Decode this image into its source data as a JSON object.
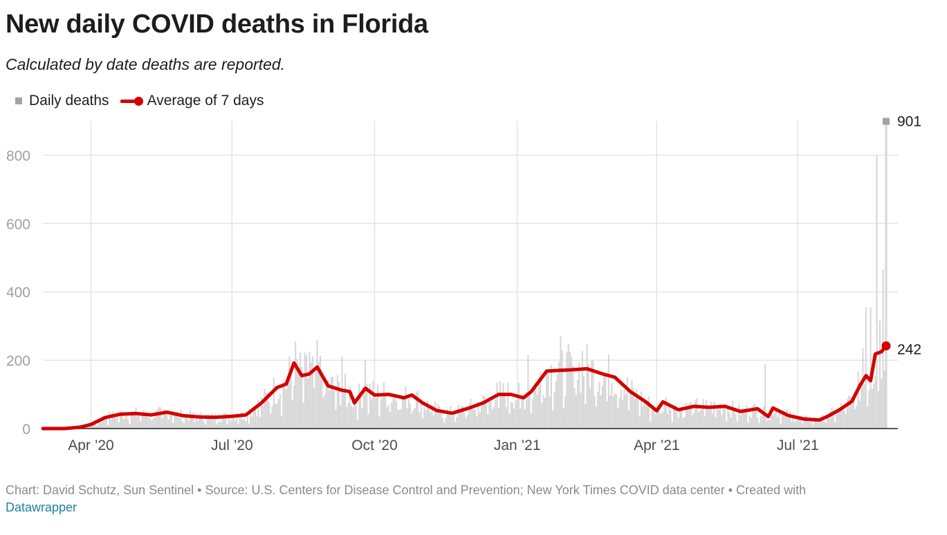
{
  "header": {
    "title": "New daily COVID deaths in Florida",
    "subtitle": "Calculated by date deaths are reported."
  },
  "legend": {
    "bars_label": "Daily deaths",
    "line_label": "Average of 7 days"
  },
  "footer": {
    "text": "Chart: David Schutz, Sun Sentinel • Source: U.S. Centers for Disease Control and Prevention; New York Times COVID data center • Created with",
    "link": "Datawrapper"
  },
  "colors": {
    "bars": "#d6d6d6",
    "bar_last": "#a3a3a3",
    "line": "#d40000",
    "grid": "#e4e4e4",
    "axis_text": "#a0a0a0"
  },
  "chart_data": {
    "type": "bar",
    "x_range": [
      "2020-03-01",
      "2021-08-27"
    ],
    "ylim": [
      0,
      900
    ],
    "y_ticks": [
      0,
      200,
      400,
      600,
      800
    ],
    "x_ticks": [
      {
        "date": "2020-04-01",
        "label": "Apr ’20"
      },
      {
        "date": "2020-07-01",
        "label": "Jul ’20"
      },
      {
        "date": "2020-10-01",
        "label": "Oct ’20"
      },
      {
        "date": "2021-01-01",
        "label": "Jan ’21"
      },
      {
        "date": "2021-04-01",
        "label": "Apr ’21"
      },
      {
        "date": "2021-07-01",
        "label": "Jul ’21"
      }
    ],
    "gridlines": true,
    "legend_position": "top-left",
    "series": [
      {
        "name": "Average of 7 days",
        "type": "line",
        "points": [
          [
            "2020-03-01",
            0
          ],
          [
            "2020-03-15",
            0
          ],
          [
            "2020-03-25",
            4
          ],
          [
            "2020-04-01",
            12
          ],
          [
            "2020-04-10",
            32
          ],
          [
            "2020-04-20",
            42
          ],
          [
            "2020-04-30",
            44
          ],
          [
            "2020-05-10",
            40
          ],
          [
            "2020-05-20",
            48
          ],
          [
            "2020-05-30",
            38
          ],
          [
            "2020-06-10",
            34
          ],
          [
            "2020-06-20",
            33
          ],
          [
            "2020-07-01",
            36
          ],
          [
            "2020-07-10",
            40
          ],
          [
            "2020-07-20",
            75
          ],
          [
            "2020-07-30",
            120
          ],
          [
            "2020-08-05",
            130
          ],
          [
            "2020-08-10",
            192
          ],
          [
            "2020-08-15",
            155
          ],
          [
            "2020-08-20",
            160
          ],
          [
            "2020-08-25",
            180
          ],
          [
            "2020-09-01",
            125
          ],
          [
            "2020-09-10",
            112
          ],
          [
            "2020-09-15",
            108
          ],
          [
            "2020-09-18",
            75
          ],
          [
            "2020-09-25",
            118
          ],
          [
            "2020-10-01",
            98
          ],
          [
            "2020-10-10",
            100
          ],
          [
            "2020-10-20",
            90
          ],
          [
            "2020-10-25",
            98
          ],
          [
            "2020-11-01",
            75
          ],
          [
            "2020-11-10",
            53
          ],
          [
            "2020-11-20",
            45
          ],
          [
            "2020-12-01",
            60
          ],
          [
            "2020-12-10",
            75
          ],
          [
            "2020-12-20",
            100
          ],
          [
            "2020-12-28",
            100
          ],
          [
            "2021-01-05",
            90
          ],
          [
            "2021-01-10",
            108
          ],
          [
            "2021-01-20",
            168
          ],
          [
            "2021-01-28",
            170
          ],
          [
            "2021-02-05",
            172
          ],
          [
            "2021-02-15",
            175
          ],
          [
            "2021-02-25",
            160
          ],
          [
            "2021-03-05",
            150
          ],
          [
            "2021-03-15",
            108
          ],
          [
            "2021-03-25",
            78
          ],
          [
            "2021-04-01",
            52
          ],
          [
            "2021-04-05",
            78
          ],
          [
            "2021-04-15",
            55
          ],
          [
            "2021-04-25",
            65
          ],
          [
            "2021-05-05",
            62
          ],
          [
            "2021-05-15",
            65
          ],
          [
            "2021-05-25",
            50
          ],
          [
            "2021-06-05",
            58
          ],
          [
            "2021-06-12",
            35
          ],
          [
            "2021-06-15",
            60
          ],
          [
            "2021-06-25",
            38
          ],
          [
            "2021-07-05",
            28
          ],
          [
            "2021-07-15",
            25
          ],
          [
            "2021-07-20",
            35
          ],
          [
            "2021-07-28",
            55
          ],
          [
            "2021-08-05",
            80
          ],
          [
            "2021-08-10",
            125
          ],
          [
            "2021-08-14",
            155
          ],
          [
            "2021-08-17",
            140
          ],
          [
            "2021-08-20",
            218
          ],
          [
            "2021-08-24",
            225
          ],
          [
            "2021-08-27",
            242
          ]
        ],
        "last_value_label": "242"
      },
      {
        "name": "Daily deaths",
        "type": "bar",
        "spikes": [
          [
            "2020-08-11",
            255
          ],
          [
            "2020-08-20",
            225
          ],
          [
            "2020-09-10",
            210
          ],
          [
            "2020-09-25",
            200
          ],
          [
            "2021-01-08",
            215
          ],
          [
            "2021-01-29",
            270
          ],
          [
            "2021-02-12",
            228
          ],
          [
            "2021-06-10",
            190
          ],
          [
            "2021-08-12",
            235
          ],
          [
            "2021-08-14",
            355
          ],
          [
            "2021-08-17",
            355
          ],
          [
            "2021-08-21",
            800
          ],
          [
            "2021-08-23",
            315
          ],
          [
            "2021-08-25",
            465
          ]
        ],
        "last_value": 901,
        "last_value_label": "901"
      }
    ]
  }
}
